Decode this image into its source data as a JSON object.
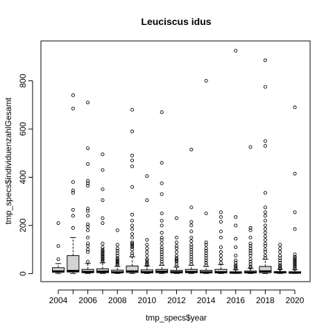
{
  "chart_data": {
    "type": "boxplot",
    "title": "Leuciscus idus",
    "xlabel": "tmp_specs$year",
    "ylabel": "tmp_specs$individuenzahlGesamt",
    "ylim": [
      0,
      930
    ],
    "y_ticks": [
      0,
      200,
      400,
      600,
      800
    ],
    "x_tick_labels": [
      "2004",
      "2006",
      "2008",
      "2010",
      "2012",
      "2014",
      "2016",
      "2018",
      "2020"
    ],
    "box_fill": "#d3d3d3",
    "categories": [
      "2004",
      "2005",
      "2006",
      "2007",
      "2008",
      "2009",
      "2010",
      "2011",
      "2012",
      "2013",
      "2014",
      "2015",
      "2016",
      "2017",
      "2018",
      "2019",
      "2020"
    ],
    "boxes": [
      {
        "year": "2004",
        "min": 1,
        "q1": 6,
        "median": 10,
        "q3": 25,
        "max": 42,
        "outliers": [
          60,
          115,
          210
        ]
      },
      {
        "year": "2005",
        "min": 1,
        "q1": 7,
        "median": 12,
        "q3": 75,
        "max": 150,
        "outliers": [
          190,
          240,
          265,
          335,
          345,
          380,
          685,
          740
        ]
      },
      {
        "year": "2006",
        "min": 1,
        "q1": 4,
        "median": 8,
        "q3": 18,
        "max": 42,
        "outliers": [
          50,
          90,
          100,
          115,
          125,
          150,
          180,
          195,
          205,
          240,
          260,
          270,
          365,
          375,
          385,
          455,
          520,
          710
        ]
      },
      {
        "year": "2007",
        "min": 1,
        "q1": 4,
        "median": 9,
        "q3": 20,
        "max": 45,
        "outliers": [
          50,
          55,
          60,
          65,
          70,
          75,
          80,
          85,
          90,
          95,
          100,
          110,
          125,
          210,
          230,
          305,
          350,
          430,
          495
        ]
      },
      {
        "year": "2008",
        "min": 1,
        "q1": 3,
        "median": 6,
        "q3": 15,
        "max": 30,
        "outliers": [
          35,
          40,
          45,
          50,
          55,
          60,
          65,
          75,
          85,
          95,
          105,
          120,
          180
        ]
      },
      {
        "year": "2009",
        "min": 1,
        "q1": 5,
        "median": 10,
        "q3": 32,
        "max": 70,
        "outliers": [
          75,
          85,
          100,
          110,
          115,
          120,
          125,
          130,
          150,
          165,
          185,
          200,
          220,
          245,
          360,
          445,
          470,
          490,
          590,
          680
        ]
      },
      {
        "year": "2010",
        "min": 1,
        "q1": 3,
        "median": 7,
        "q3": 16,
        "max": 32,
        "outliers": [
          35,
          40,
          45,
          55,
          60,
          75,
          90,
          105,
          120,
          140,
          305,
          405
        ]
      },
      {
        "year": "2011",
        "min": 1,
        "q1": 4,
        "median": 9,
        "q3": 18,
        "max": 35,
        "outliers": [
          40,
          50,
          60,
          70,
          80,
          90,
          100,
          110,
          125,
          140,
          150,
          170,
          200,
          220,
          250,
          330,
          375,
          460,
          670
        ]
      },
      {
        "year": "2012",
        "min": 1,
        "q1": 3,
        "median": 7,
        "q3": 14,
        "max": 28,
        "outliers": [
          30,
          40,
          50,
          55,
          60,
          65,
          75,
          90,
          105,
          115,
          130,
          150,
          230
        ]
      },
      {
        "year": "2013",
        "min": 1,
        "q1": 4,
        "median": 8,
        "q3": 18,
        "max": 35,
        "outliers": [
          40,
          50,
          60,
          70,
          80,
          90,
          100,
          110,
          120,
          135,
          150,
          175,
          200,
          215,
          275,
          515
        ]
      },
      {
        "year": "2014",
        "min": 1,
        "q1": 3,
        "median": 6,
        "q3": 14,
        "max": 30,
        "outliers": [
          35,
          45,
          55,
          65,
          75,
          85,
          95,
          105,
          120,
          130,
          250,
          800
        ]
      },
      {
        "year": "2015",
        "min": 1,
        "q1": 3,
        "median": 7,
        "q3": 18,
        "max": 38,
        "outliers": [
          45,
          60,
          75,
          90,
          110,
          150,
          175,
          215,
          235,
          255
        ]
      },
      {
        "year": "2016",
        "min": 1,
        "q1": 2,
        "median": 4,
        "q3": 8,
        "max": 16,
        "outliers": [
          20,
          25,
          30,
          35,
          45,
          55,
          75,
          110,
          145,
          200,
          235,
          925
        ]
      },
      {
        "year": "2017",
        "min": 1,
        "q1": 3,
        "median": 5,
        "q3": 11,
        "max": 22,
        "outliers": [
          25,
          30,
          40,
          50,
          60,
          75,
          85,
          95,
          105,
          115,
          125,
          150,
          180,
          190,
          525
        ]
      },
      {
        "year": "2018",
        "min": 1,
        "q1": 4,
        "median": 10,
        "q3": 30,
        "max": 60,
        "outliers": [
          65,
          75,
          90,
          100,
          115,
          125,
          140,
          155,
          170,
          185,
          200,
          220,
          240,
          255,
          275,
          335,
          530,
          550,
          775,
          885
        ]
      },
      {
        "year": "2019",
        "min": 1,
        "q1": 3,
        "median": 5,
        "q3": 9,
        "max": 18,
        "outliers": [
          20,
          25,
          30,
          35,
          45,
          55,
          65,
          75,
          90,
          105,
          120
        ]
      },
      {
        "year": "2020",
        "min": 1,
        "q1": 2,
        "median": 4,
        "q3": 8,
        "max": 16,
        "outliers": [
          20,
          25,
          30,
          35,
          40,
          45,
          50,
          55,
          60,
          65,
          70,
          80,
          185,
          255,
          415,
          690
        ]
      }
    ]
  }
}
